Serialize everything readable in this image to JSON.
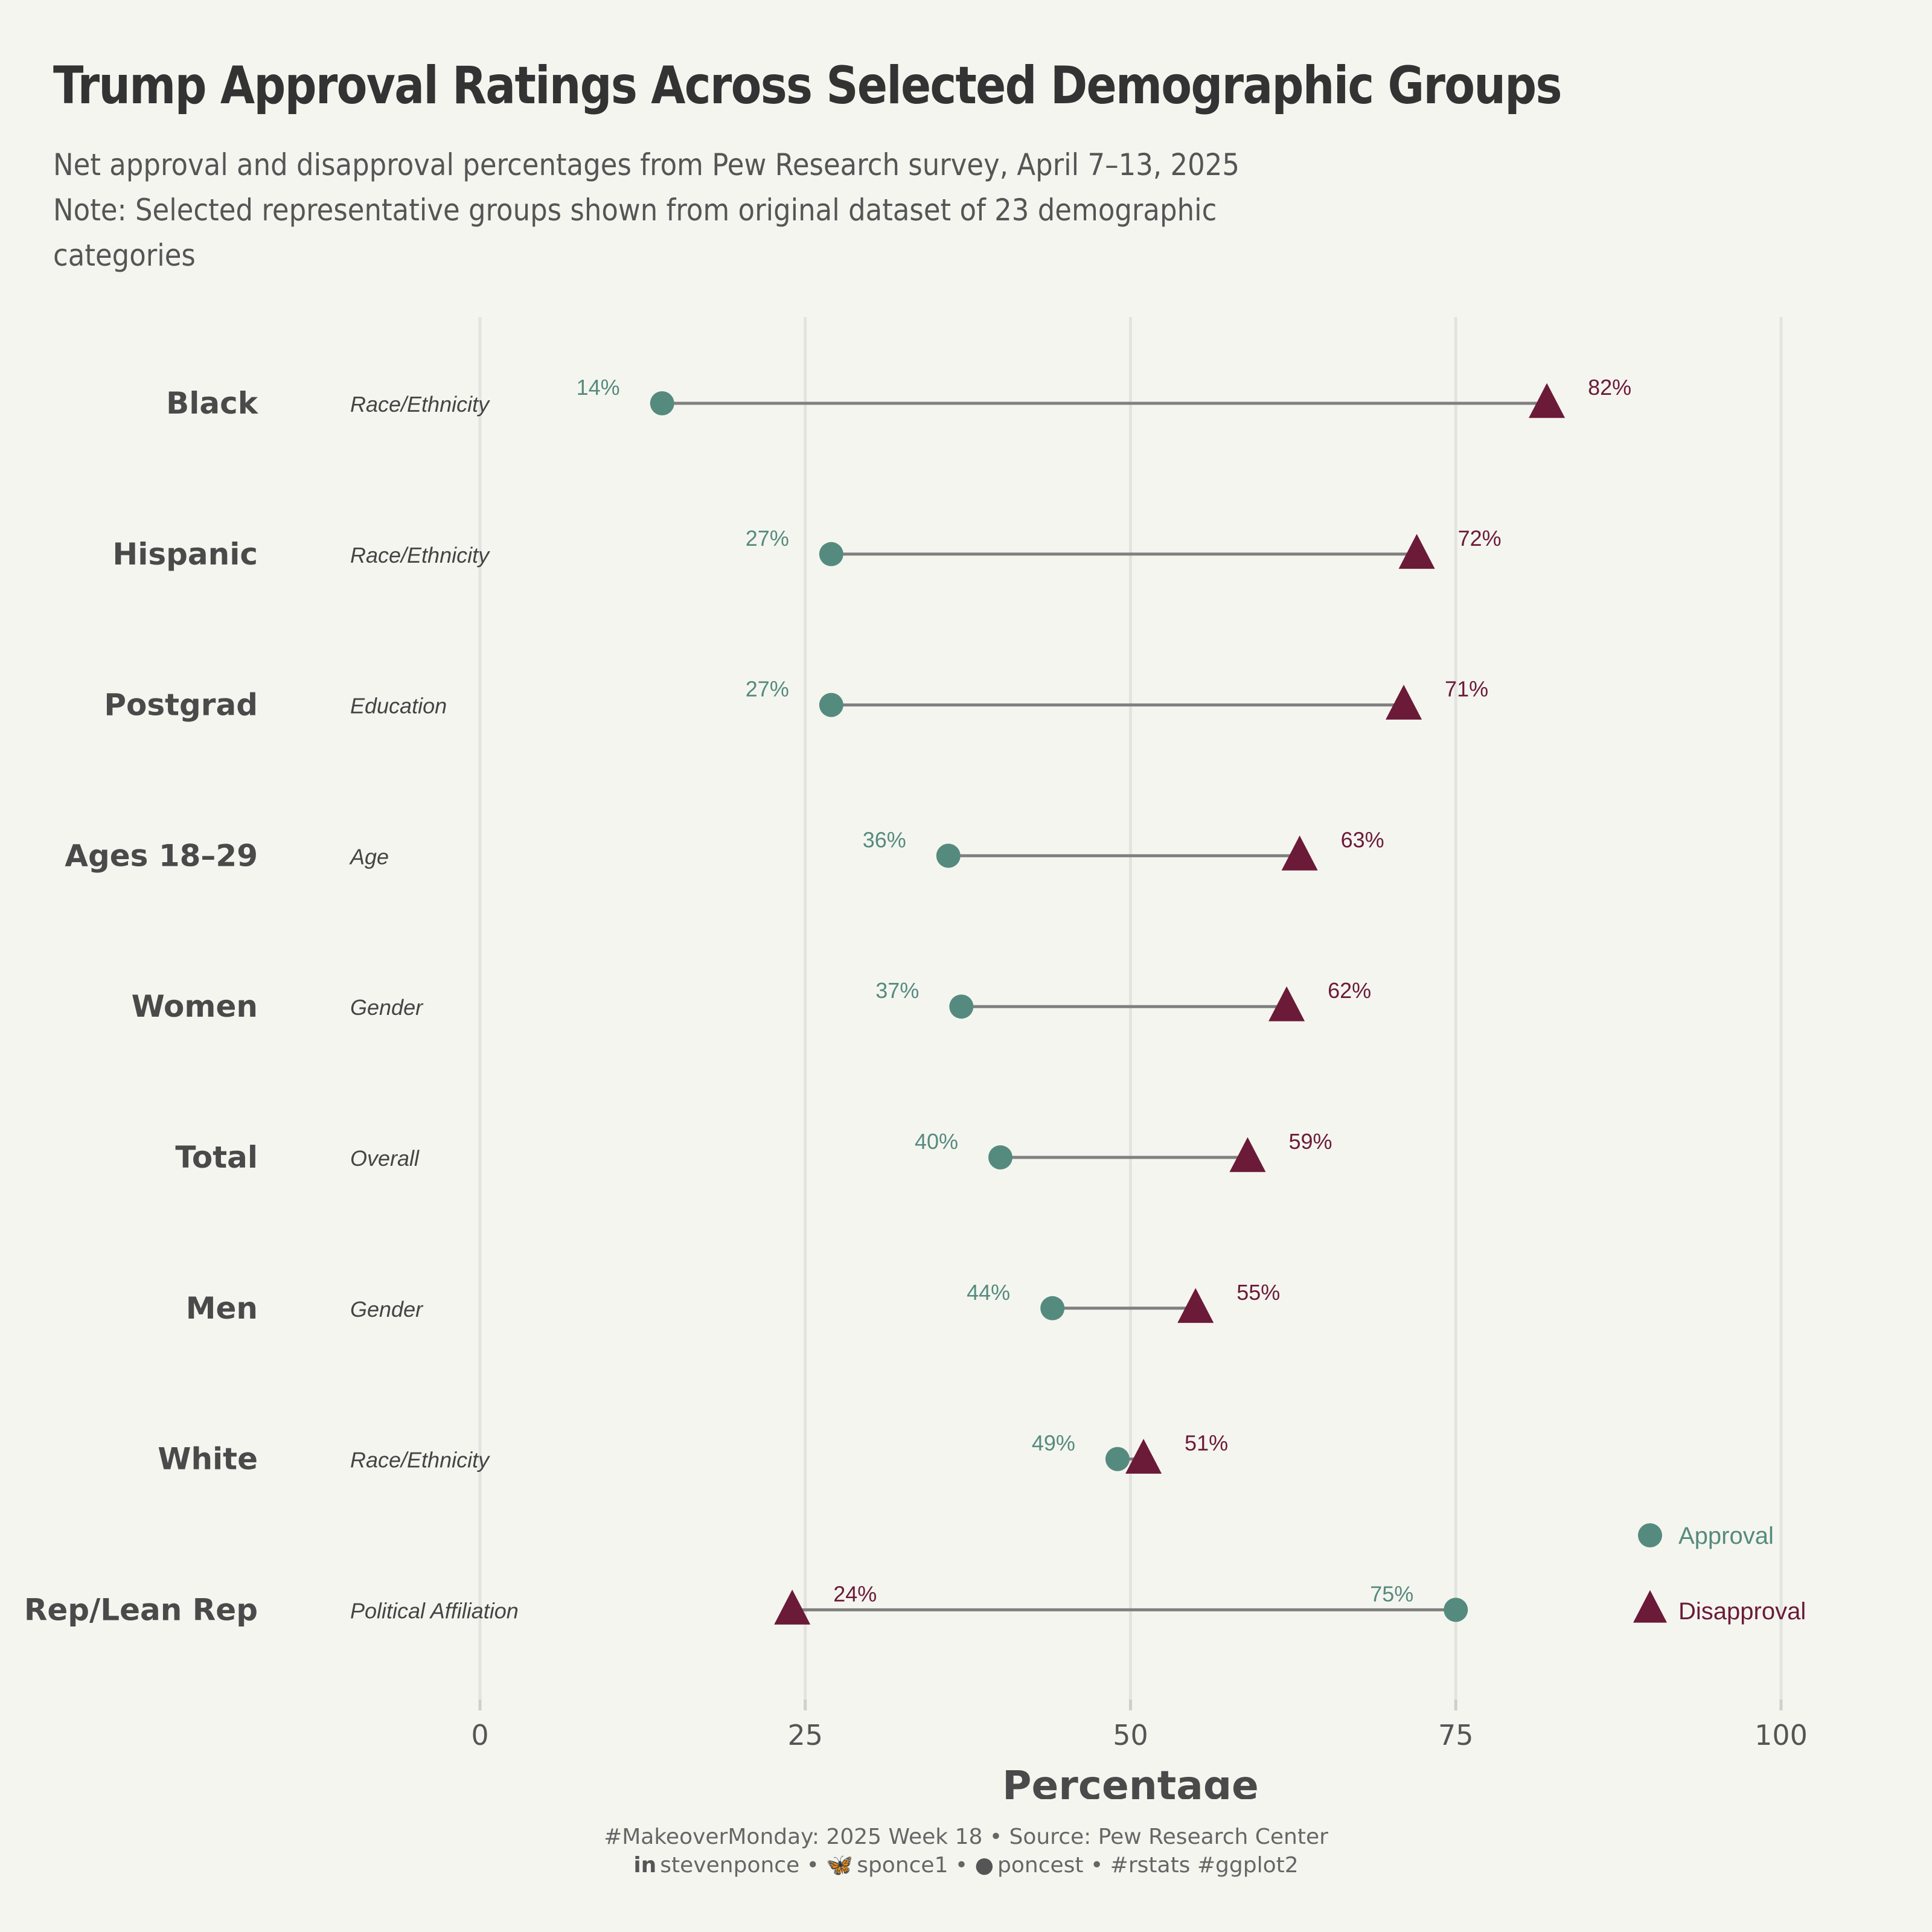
{
  "title": "Trump Approval Ratings Across Selected Demographic Groups",
  "subtitle_lines": [
    "Net approval and disapproval percentages from Pew Research survey, April 7–13, 2025",
    "Note: Selected representative groups shown from original dataset of 23 demographic",
    "categories"
  ],
  "colors": {
    "approval": "#558b7e",
    "disapproval": "#6b1a38",
    "background": "#f5f5f0",
    "connector": "#808080",
    "grid": "#e3e3e0"
  },
  "chart_data": {
    "type": "dumbbell",
    "xlabel": "Percentage",
    "xlim": [
      0,
      100
    ],
    "xticks": [
      0,
      25,
      50,
      75,
      100
    ],
    "grid": true,
    "legend_position": "bottom-right",
    "series": [
      {
        "name": "Approval",
        "marker": "circle"
      },
      {
        "name": "Disapproval",
        "marker": "triangle"
      }
    ],
    "groups": [
      {
        "label": "Black",
        "category": "Race/Ethnicity",
        "approval": 14,
        "disapproval": 82
      },
      {
        "label": "Hispanic",
        "category": "Race/Ethnicity",
        "approval": 27,
        "disapproval": 72
      },
      {
        "label": "Postgrad",
        "category": "Education",
        "approval": 27,
        "disapproval": 71
      },
      {
        "label": "Ages 18–29",
        "category": "Age",
        "approval": 36,
        "disapproval": 63
      },
      {
        "label": "Women",
        "category": "Gender",
        "approval": 37,
        "disapproval": 62
      },
      {
        "label": "Total",
        "category": "Overall",
        "approval": 40,
        "disapproval": 59
      },
      {
        "label": "Men",
        "category": "Gender",
        "approval": 44,
        "disapproval": 55
      },
      {
        "label": "White",
        "category": "Race/Ethnicity",
        "approval": 49,
        "disapproval": 51
      },
      {
        "label": "Rep/Lean Rep",
        "category": "Political Affiliation",
        "approval": 75,
        "disapproval": 24
      }
    ]
  },
  "caption": {
    "line1": "#MakeoverMonday: 2025 Week 18 • Source: Pew Research Center",
    "line2_parts": [
      {
        "icon": "linkedin-icon",
        "text": "stevenponce"
      },
      {
        "icon": "bluesky-butterfly-icon",
        "text": "sponce1"
      },
      {
        "icon": "github-icon",
        "text": "poncest"
      },
      {
        "icon": "",
        "text": "#rstats #ggplot2"
      }
    ],
    "separator": " • "
  }
}
